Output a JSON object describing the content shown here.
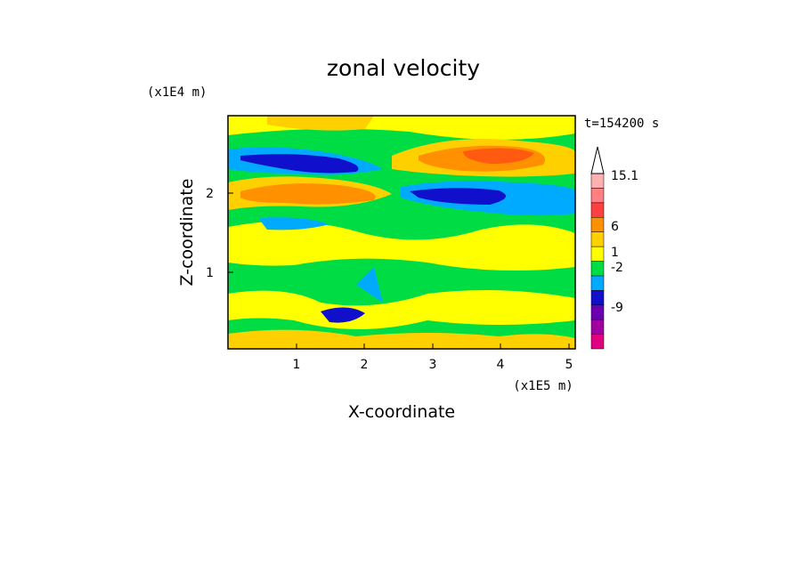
{
  "chart_data": {
    "type": "heatmap",
    "title": "zonal velocity",
    "xlabel": "X-coordinate",
    "ylabel": "Z-coordinate",
    "x_unit": "(x1E5 m)",
    "y_unit": "(x1E4 m)",
    "time_label": "t=154200 s",
    "xlim": [
      0,
      5.1
    ],
    "ylim": [
      0,
      2.95
    ],
    "x_ticks": [
      "1",
      "2",
      "3",
      "4",
      "5"
    ],
    "y_ticks": [
      "1",
      "2"
    ],
    "colorbar": {
      "labels": [
        "15.1",
        "6",
        "1",
        "-2",
        "-9"
      ],
      "colors": [
        "#e00080",
        "#a000a0",
        "#6a00b0",
        "#1010cc",
        "#00aaff",
        "#00dd44",
        "#ffff00",
        "#ffd000",
        "#ff9000",
        "#ff4040",
        "#ff8080",
        "#ffb0b0"
      ]
    },
    "bands": [
      {
        "z": 2.75,
        "note": "green/yellow top layer"
      },
      {
        "z": 2.45,
        "min": -9,
        "max": 6,
        "desc": "negative core near x=1.5, positive core near x=3.8"
      },
      {
        "z": 2.0,
        "min": -9,
        "max": 6,
        "desc": "positive near x=1.6, negative near x=3.4"
      },
      {
        "z": 1.6,
        "min": -2,
        "max": 1
      },
      {
        "z": 0.5,
        "min": -2,
        "max": 1
      }
    ]
  }
}
